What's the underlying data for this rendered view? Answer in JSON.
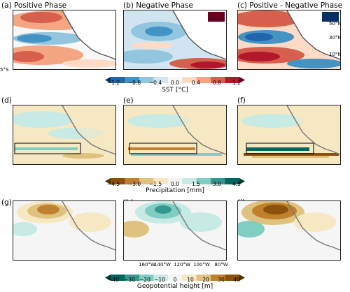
{
  "panels": {
    "a": {
      "title": "(a)   Positive Phase"
    },
    "b": {
      "title": "(b)   Negative Phase"
    },
    "c": {
      "title": "(c)  Positive - Negative Phase"
    },
    "d": {
      "title": "(d)"
    },
    "e": {
      "title": "(e)"
    },
    "f": {
      "title": "(f)"
    },
    "g": {
      "title": "(g)"
    },
    "h": {
      "title": "(h)"
    },
    "i": {
      "title": "(i)"
    }
  },
  "lat_ticks": [
    "50°N",
    "30°N",
    "10°N",
    "5°S"
  ],
  "lon_ticks": [
    "160°W",
    "140°W",
    "120°W",
    "100°W",
    "80°W"
  ],
  "colorbars": {
    "sst": {
      "label": "SST [°C]",
      "ticks": [
        "−1.2",
        "−0.8",
        "−0.4",
        "0.0",
        "0.4",
        "0.8",
        "1.2"
      ]
    },
    "precip": {
      "label": "Precipitation [mm]",
      "ticks": [
        "−4.5",
        "−3.0",
        "−1.5",
        "0.0",
        "1.5",
        "3.0",
        "4.5"
      ]
    },
    "geo": {
      "label": "Geopotential height [m]",
      "ticks": [
        "−40",
        "−30",
        "−20",
        "−10",
        "0",
        "10",
        "20",
        "30",
        "40"
      ]
    }
  },
  "colors": {
    "sst": [
      "#053061",
      "#2166ac",
      "#4393c3",
      "#92c5de",
      "#d1e5f0",
      "#f7f7f7",
      "#fddbc7",
      "#f4a582",
      "#d6604d",
      "#b2182b",
      "#67001f"
    ],
    "precip": [
      "#543005",
      "#8c510a",
      "#bf812d",
      "#dfc27d",
      "#f6e8c3",
      "#f5f5f5",
      "#c7eae5",
      "#80cdc1",
      "#35978f",
      "#01665e",
      "#003c30"
    ],
    "geo": [
      "#003c30",
      "#01665e",
      "#35978f",
      "#80cdc1",
      "#c7eae5",
      "#f5f5f5",
      "#f6e8c3",
      "#dfc27d",
      "#bf812d",
      "#8c510a",
      "#543005"
    ]
  }
}
